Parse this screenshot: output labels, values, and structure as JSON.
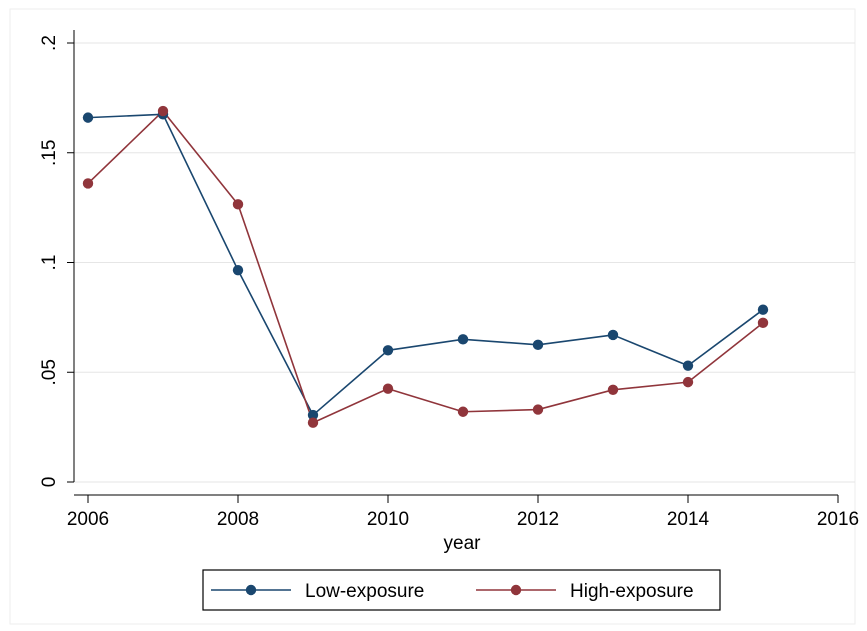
{
  "chart_data": {
    "type": "line",
    "title": "",
    "xlabel": "year",
    "ylabel": "",
    "xlim": [
      2006,
      2016
    ],
    "ylim": [
      0,
      0.2
    ],
    "x_ticks": [
      2006,
      2008,
      2010,
      2012,
      2014,
      2016
    ],
    "x_tick_labels": [
      "2006",
      "2008",
      "2010",
      "2012",
      "2014",
      "2016"
    ],
    "y_ticks": [
      0,
      0.05,
      0.1,
      0.15,
      0.2
    ],
    "y_tick_labels": [
      "0",
      ".05",
      ".1",
      ".15",
      ".2"
    ],
    "grid": true,
    "legend_position": "bottom",
    "x": [
      2006,
      2007,
      2008,
      2009,
      2010,
      2011,
      2012,
      2013,
      2014,
      2015
    ],
    "series": [
      {
        "name": "Low-exposure",
        "color": "#1a476f",
        "values": [
          0.166,
          0.1675,
          0.0965,
          0.0305,
          0.06,
          0.065,
          0.0625,
          0.067,
          0.053,
          0.0785
        ]
      },
      {
        "name": "High-exposure",
        "color": "#90353b",
        "values": [
          0.136,
          0.169,
          0.1265,
          0.027,
          0.0425,
          0.032,
          0.033,
          0.042,
          0.0455,
          0.0725
        ]
      }
    ]
  }
}
